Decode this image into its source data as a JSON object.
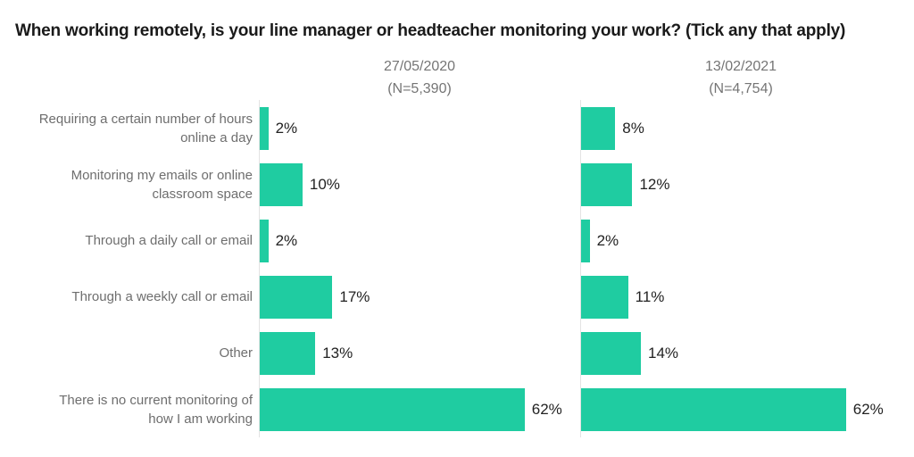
{
  "title": "When working remotely, is your line manager or headteacher monitoring your work? (Tick any that apply)",
  "colors": {
    "bar": "#1fcca1",
    "title_text": "#1a1a1a",
    "header_text": "#757575",
    "category_text": "#6e6e6e",
    "value_text": "#222222",
    "axis_line": "#e3e3e3",
    "background": "#ffffff"
  },
  "chart_data": {
    "type": "bar",
    "orientation": "horizontal",
    "title": "When working remotely, is your line manager or headteacher monitoring your work? (Tick any that apply)",
    "xlabel": "",
    "ylabel": "",
    "xlim": [
      0,
      75
    ],
    "grid": false,
    "legend_position": "column-headers-top",
    "value_suffix": "%",
    "categories": [
      "Requiring a certain number of hours\nonline a day",
      "Monitoring my emails or online\nclassroom space",
      "Through a daily call or email",
      "Through a weekly call or email",
      "Other",
      "There is no current monitoring of\nhow I am working"
    ],
    "series": [
      {
        "name": "27/05/2020",
        "n_label": "(N=5,390)",
        "values": [
          2,
          10,
          2,
          17,
          13,
          62
        ],
        "labels": [
          "2%",
          "10%",
          "2%",
          "17%",
          "13%",
          "62%"
        ]
      },
      {
        "name": "13/02/2021",
        "n_label": "(N=4,754)",
        "values": [
          8,
          12,
          2,
          11,
          14,
          62
        ],
        "labels": [
          "8%",
          "12%",
          "2%",
          "11%",
          "14%",
          "62%"
        ]
      }
    ]
  }
}
